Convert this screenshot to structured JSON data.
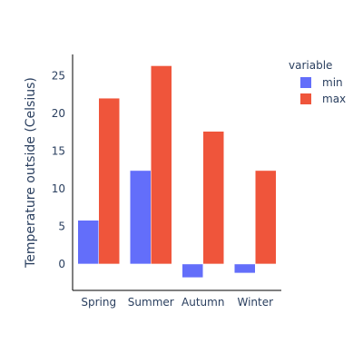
{
  "chart_data": {
    "type": "bar",
    "barmode": "group",
    "categories": [
      "Spring",
      "Summer",
      "Autumn",
      "Winter"
    ],
    "series": [
      {
        "name": "min",
        "values": [
          5.8,
          12.4,
          -1.8,
          -1.2
        ],
        "color": "#636efa"
      },
      {
        "name": "max",
        "values": [
          22,
          26.3,
          17.6,
          12.4
        ],
        "color": "#ef553b"
      }
    ],
    "title": "",
    "xlabel": "",
    "ylabel": "Temperature outside (Celsius)",
    "ylim": [
      -3.5,
      27.8
    ],
    "yticks": [
      0,
      5,
      10,
      15,
      20,
      25
    ],
    "legend": {
      "title": "variable",
      "placement": "top-right"
    },
    "grid": false
  }
}
